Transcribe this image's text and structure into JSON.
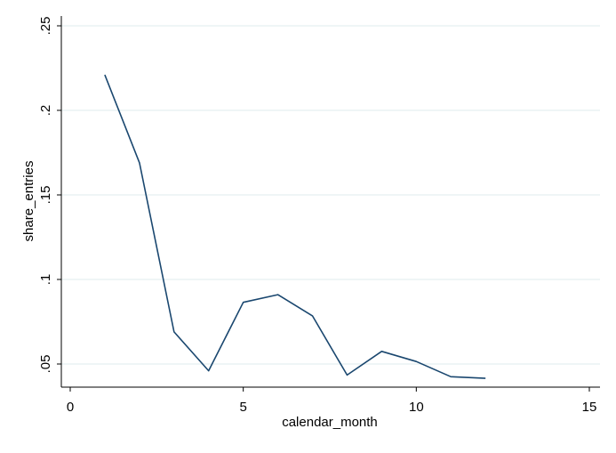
{
  "chart_data": {
    "type": "line",
    "title": "",
    "xlabel": "calendar_month",
    "ylabel": "share_entries",
    "xlim": [
      0,
      15
    ],
    "ylim": [
      0.04,
      0.25
    ],
    "x_ticks": [
      {
        "value": 0,
        "label": "0"
      },
      {
        "value": 5,
        "label": "5"
      },
      {
        "value": 10,
        "label": "10"
      },
      {
        "value": 15,
        "label": "15"
      }
    ],
    "y_ticks": [
      {
        "value": 0.05,
        "label": ".05"
      },
      {
        "value": 0.1,
        "label": ".1"
      },
      {
        "value": 0.15,
        "label": ".15"
      },
      {
        "value": 0.2,
        "label": ".2"
      },
      {
        "value": 0.25,
        "label": ".25"
      }
    ],
    "grid": true,
    "legend": "none",
    "series": [
      {
        "color": "#1a476f",
        "x": [
          1,
          2,
          3,
          4,
          5,
          6,
          7,
          8,
          9,
          10,
          11,
          12
        ],
        "y": [
          0.221,
          0.169,
          0.069,
          0.046,
          0.0865,
          0.091,
          0.0785,
          0.0435,
          0.0575,
          0.0515,
          0.0425,
          0.0415
        ]
      }
    ]
  },
  "colors": {
    "line": "#1a476f",
    "grid": "#eaf2f3",
    "axis": "#000000",
    "background": "#ffffff"
  }
}
